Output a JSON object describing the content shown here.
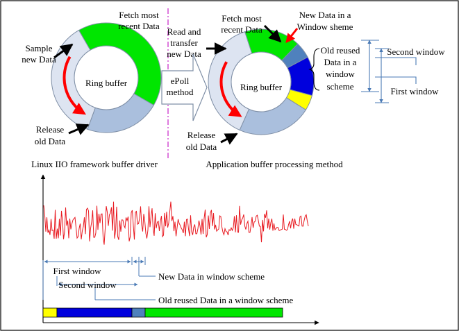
{
  "left_diagram": {
    "fetch_label": [
      "Fetch most",
      "recent Data"
    ],
    "sample_label": [
      "Sample",
      "new Data"
    ],
    "ring_label": "Ring buffer",
    "release_label": [
      "Release",
      "old Data"
    ],
    "caption": "Linux IIO framework buffer driver"
  },
  "transfer": {
    "read_label": [
      "Read and",
      "transfer",
      "new Data"
    ],
    "arrow_label": [
      "ePoll",
      "method"
    ]
  },
  "right_diagram": {
    "fetch_label": [
      "Fetch most",
      "recent Data"
    ],
    "new_data_label": [
      "New  Data in a",
      "Window sheme"
    ],
    "ring_label": "Ring buffer",
    "release_label": [
      "Release",
      "old Data"
    ],
    "old_reused_label": [
      "Old reused",
      "Data in a",
      "window",
      "scheme"
    ],
    "second_window_label": "Second window",
    "first_window_label": "First window",
    "caption": "Application buffer processing method"
  },
  "signal_plot": {
    "first_window_label": "First window",
    "second_window_label": "Second window",
    "new_data_label": "New Data in window scheme",
    "old_reused_label": "Old reused Data in a window scheme"
  },
  "colors": {
    "green": "#00e600",
    "light_blue": "#aabfdd",
    "pale": "#dde4f1",
    "dark_blue": "#0000dd",
    "slate": "#4f81bd",
    "yellow": "#ffff00",
    "red": "#ff0000",
    "signal": "#e8181f",
    "window_line": "#4a7ab5",
    "divider": "#cc33cc"
  }
}
